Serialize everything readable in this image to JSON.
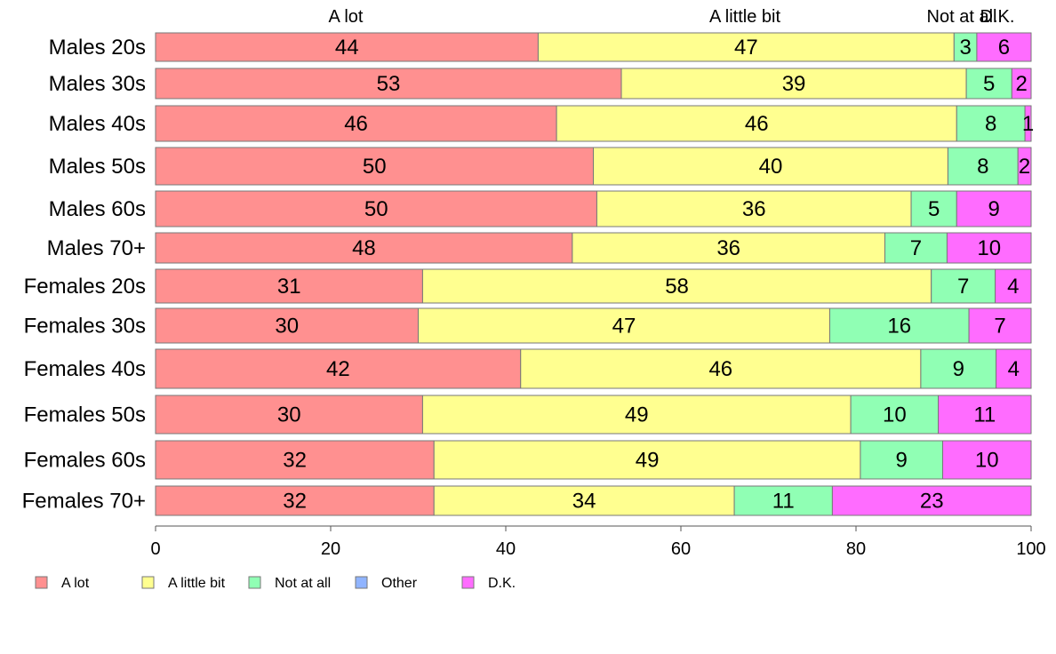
{
  "chart_data": {
    "type": "bar",
    "orientation": "horizontal",
    "stacked": true,
    "categories": [
      "Males 20s",
      "Males 30s",
      "Males 40s",
      "Males 50s",
      "Males 60s",
      "Males 70+",
      "Females 20s",
      "Females 30s",
      "Females 40s",
      "Females 50s",
      "Females 60s",
      "Females 70+"
    ],
    "series": [
      {
        "name": "A lot",
        "color": "#ff9090",
        "values": [
          44,
          53,
          46,
          50,
          50,
          48,
          31,
          30,
          42,
          30,
          32,
          32
        ]
      },
      {
        "name": "A little bit",
        "color": "#ffff90",
        "values": [
          47,
          39,
          46,
          40,
          36,
          36,
          58,
          47,
          46,
          49,
          49,
          34
        ]
      },
      {
        "name": "Not at all",
        "color": "#90ffb4",
        "values": [
          3,
          5,
          8,
          8,
          5,
          7,
          7,
          16,
          9,
          10,
          9,
          11
        ]
      },
      {
        "name": "Other",
        "color": "#90b4ff",
        "values": [
          0,
          0,
          0,
          0,
          0,
          0,
          0,
          0,
          0,
          0,
          0,
          0
        ]
      },
      {
        "name": "D.K.",
        "color": "#ff6cff",
        "values": [
          6,
          2,
          1,
          2,
          9,
          10,
          4,
          7,
          4,
          11,
          10,
          23
        ]
      }
    ],
    "precise_shares": [
      [
        43.7,
        47.5,
        2.6,
        0,
        6.2
      ],
      [
        53.2,
        39.4,
        5.2,
        0,
        2.2
      ],
      [
        45.8,
        45.7,
        7.8,
        0,
        0.7
      ],
      [
        50.0,
        40.5,
        8.0,
        0,
        1.5
      ],
      [
        50.4,
        35.9,
        5.2,
        0,
        8.5
      ],
      [
        47.6,
        35.7,
        7.1,
        0,
        9.6
      ],
      [
        30.5,
        58.1,
        7.3,
        0,
        4.1
      ],
      [
        30.0,
        47.0,
        15.9,
        0,
        7.1
      ],
      [
        41.7,
        45.7,
        8.6,
        0,
        4.0
      ],
      [
        30.5,
        48.9,
        10.0,
        0,
        10.6
      ],
      [
        31.8,
        48.7,
        9.4,
        0,
        10.1
      ],
      [
        31.8,
        34.3,
        11.2,
        0,
        22.7
      ]
    ],
    "top_labels": [
      "A lot",
      "A little bit",
      "Not at all",
      "D.K."
    ],
    "x_ticks": [
      0,
      20,
      40,
      60,
      80,
      100
    ],
    "xlim": [
      0,
      100
    ],
    "legend_position": "bottom",
    "grid": false
  }
}
